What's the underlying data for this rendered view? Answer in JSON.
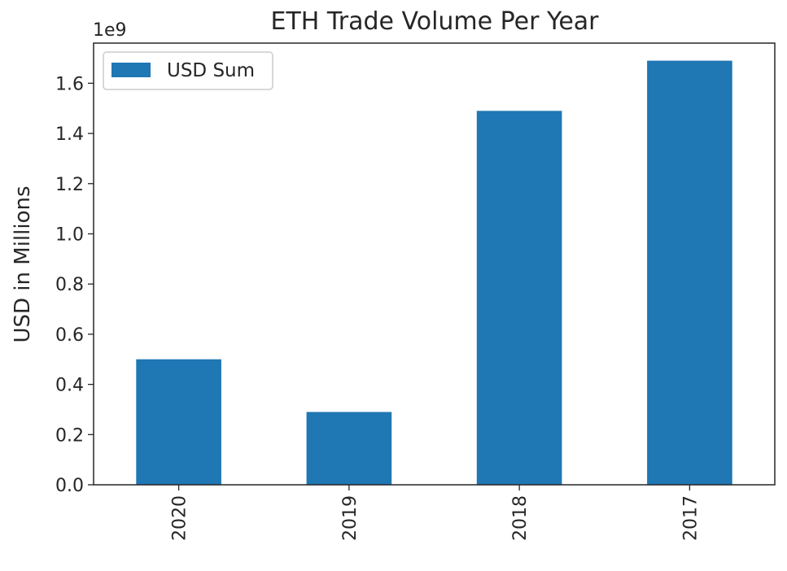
{
  "chart_data": {
    "type": "bar",
    "title": "ETH Trade Volume Per Year",
    "xlabel": "",
    "ylabel": "USD in Millions",
    "y_offset_label": "1e9",
    "categories": [
      "2020",
      "2019",
      "2018",
      "2017"
    ],
    "series": [
      {
        "name": "USD Sum",
        "values": [
          0.5,
          0.29,
          1.49,
          1.69
        ],
        "color": "#1f77b4"
      }
    ],
    "ylim": [
      0,
      1.76
    ],
    "yticks": [
      0.0,
      0.2,
      0.4,
      0.6,
      0.8,
      1.0,
      1.2,
      1.4,
      1.6
    ],
    "ytick_labels": [
      "0.0",
      "0.2",
      "0.4",
      "0.6",
      "0.8",
      "1.0",
      "1.2",
      "1.4",
      "1.6"
    ],
    "x_tick_rotation": "vertical",
    "grid": false,
    "legend_position": "top-left"
  }
}
